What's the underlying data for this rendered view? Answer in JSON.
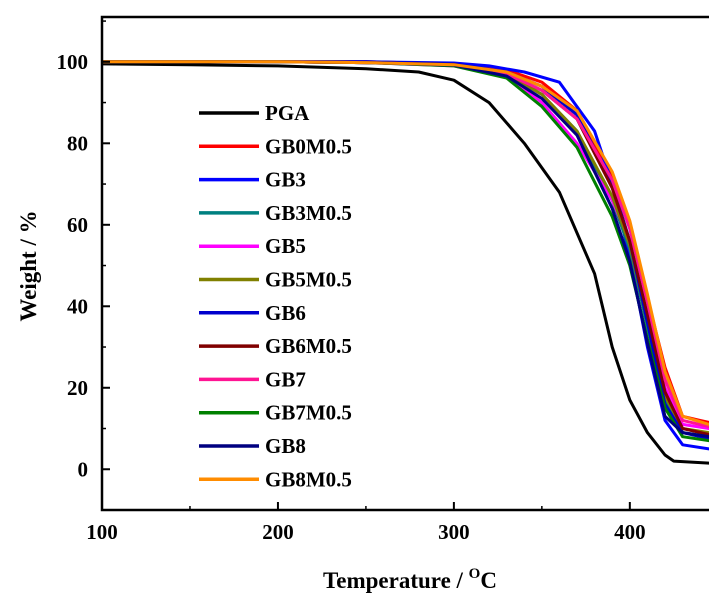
{
  "chart_data": {
    "type": "line",
    "title": "",
    "xlabel": "Temperature / ",
    "xlabel_sup": "O",
    "xlabel_unit": "C",
    "ylabel": "Weight / %",
    "xlim": [
      100,
      445
    ],
    "ylim": [
      -10,
      111
    ],
    "x_ticks": [
      100,
      200,
      300,
      400
    ],
    "y_ticks": [
      0,
      20,
      40,
      60,
      80,
      100
    ],
    "x_tick_labels": [
      "100",
      "200",
      "300",
      "400"
    ],
    "y_tick_labels": [
      "0",
      "20",
      "40",
      "60",
      "80",
      "100"
    ],
    "legend_position": "center-left",
    "grid": false,
    "series": [
      {
        "name": "PGA",
        "color": "#000000",
        "points": [
          [
            100,
            99.5
          ],
          [
            150,
            99.3
          ],
          [
            200,
            99
          ],
          [
            250,
            98.3
          ],
          [
            280,
            97.5
          ],
          [
            300,
            95.5
          ],
          [
            320,
            90
          ],
          [
            340,
            80
          ],
          [
            360,
            68
          ],
          [
            380,
            48
          ],
          [
            390,
            30
          ],
          [
            400,
            17
          ],
          [
            410,
            9
          ],
          [
            420,
            3.5
          ],
          [
            425,
            2
          ],
          [
            445,
            1.5
          ]
        ]
      },
      {
        "name": "GB0M0.5",
        "color": "#FF0000",
        "points": [
          [
            100,
            100
          ],
          [
            150,
            100
          ],
          [
            200,
            100
          ],
          [
            250,
            100
          ],
          [
            300,
            99.5
          ],
          [
            330,
            98
          ],
          [
            350,
            95
          ],
          [
            370,
            88
          ],
          [
            390,
            72
          ],
          [
            400,
            60
          ],
          [
            410,
            42
          ],
          [
            420,
            25
          ],
          [
            430,
            13
          ],
          [
            440,
            12
          ],
          [
            445,
            11.5
          ]
        ]
      },
      {
        "name": "GB3",
        "color": "#0000FF",
        "points": [
          [
            100,
            100
          ],
          [
            150,
            100
          ],
          [
            200,
            100
          ],
          [
            250,
            100
          ],
          [
            300,
            99.7
          ],
          [
            320,
            99
          ],
          [
            340,
            97.5
          ],
          [
            360,
            95
          ],
          [
            380,
            83
          ],
          [
            390,
            70
          ],
          [
            400,
            52
          ],
          [
            410,
            30
          ],
          [
            420,
            12
          ],
          [
            430,
            6
          ],
          [
            445,
            5
          ]
        ]
      },
      {
        "name": "GB3M0.5",
        "color": "#008080",
        "points": [
          [
            100,
            100
          ],
          [
            150,
            100
          ],
          [
            200,
            100
          ],
          [
            250,
            99.8
          ],
          [
            300,
            99.2
          ],
          [
            330,
            97
          ],
          [
            350,
            92
          ],
          [
            370,
            83
          ],
          [
            390,
            66
          ],
          [
            400,
            54
          ],
          [
            410,
            35
          ],
          [
            420,
            17
          ],
          [
            430,
            9
          ],
          [
            445,
            8
          ]
        ]
      },
      {
        "name": "GB5",
        "color": "#FF00FF",
        "points": [
          [
            100,
            100
          ],
          [
            150,
            100
          ],
          [
            200,
            100
          ],
          [
            250,
            99.8
          ],
          [
            300,
            99
          ],
          [
            330,
            96.5
          ],
          [
            350,
            90
          ],
          [
            370,
            80
          ],
          [
            390,
            66
          ],
          [
            400,
            56
          ],
          [
            410,
            38
          ],
          [
            420,
            20
          ],
          [
            430,
            11
          ],
          [
            445,
            10
          ]
        ]
      },
      {
        "name": "GB5M0.5",
        "color": "#808000",
        "points": [
          [
            100,
            100
          ],
          [
            150,
            100
          ],
          [
            200,
            100
          ],
          [
            250,
            99.8
          ],
          [
            300,
            99.2
          ],
          [
            330,
            97
          ],
          [
            350,
            92
          ],
          [
            370,
            83
          ],
          [
            390,
            67
          ],
          [
            400,
            55
          ],
          [
            410,
            36
          ],
          [
            420,
            18
          ],
          [
            430,
            10
          ],
          [
            445,
            9
          ]
        ]
      },
      {
        "name": "GB6",
        "color": "#0000CD",
        "points": [
          [
            100,
            100
          ],
          [
            150,
            100
          ],
          [
            200,
            100
          ],
          [
            250,
            100
          ],
          [
            300,
            99.5
          ],
          [
            330,
            97.5
          ],
          [
            350,
            94
          ],
          [
            370,
            87
          ],
          [
            390,
            70
          ],
          [
            400,
            56
          ],
          [
            410,
            36
          ],
          [
            420,
            16
          ],
          [
            430,
            9
          ],
          [
            445,
            7.5
          ]
        ]
      },
      {
        "name": "GB6M0.5",
        "color": "#800000",
        "points": [
          [
            100,
            100
          ],
          [
            150,
            100
          ],
          [
            200,
            100
          ],
          [
            250,
            99.8
          ],
          [
            300,
            99.3
          ],
          [
            330,
            97
          ],
          [
            350,
            93
          ],
          [
            370,
            86
          ],
          [
            390,
            69
          ],
          [
            400,
            56
          ],
          [
            410,
            38
          ],
          [
            420,
            19
          ],
          [
            430,
            10
          ],
          [
            445,
            8.5
          ]
        ]
      },
      {
        "name": "GB7",
        "color": "#FF1493",
        "points": [
          [
            100,
            100
          ],
          [
            150,
            100
          ],
          [
            200,
            100
          ],
          [
            250,
            99.8
          ],
          [
            300,
            99.2
          ],
          [
            330,
            97
          ],
          [
            350,
            93
          ],
          [
            370,
            86
          ],
          [
            390,
            71
          ],
          [
            400,
            59
          ],
          [
            410,
            41
          ],
          [
            420,
            22
          ],
          [
            430,
            12
          ],
          [
            445,
            10.5
          ]
        ]
      },
      {
        "name": "GB7M0.5",
        "color": "#008000",
        "points": [
          [
            100,
            100
          ],
          [
            150,
            100
          ],
          [
            200,
            100
          ],
          [
            250,
            99.8
          ],
          [
            300,
            99
          ],
          [
            330,
            96
          ],
          [
            350,
            89
          ],
          [
            370,
            79
          ],
          [
            390,
            62
          ],
          [
            400,
            50
          ],
          [
            410,
            32
          ],
          [
            420,
            15
          ],
          [
            430,
            8
          ],
          [
            445,
            7
          ]
        ]
      },
      {
        "name": "GB8",
        "color": "#000080",
        "points": [
          [
            100,
            100
          ],
          [
            150,
            100
          ],
          [
            200,
            100
          ],
          [
            250,
            99.8
          ],
          [
            300,
            99.2
          ],
          [
            330,
            96.5
          ],
          [
            350,
            91
          ],
          [
            370,
            82
          ],
          [
            390,
            64
          ],
          [
            400,
            51
          ],
          [
            410,
            31
          ],
          [
            420,
            13
          ],
          [
            430,
            9
          ],
          [
            445,
            8
          ]
        ]
      },
      {
        "name": "GB8M0.5",
        "color": "#FF8C00",
        "points": [
          [
            100,
            100
          ],
          [
            150,
            100
          ],
          [
            200,
            100
          ],
          [
            250,
            99.8
          ],
          [
            300,
            99.3
          ],
          [
            330,
            97.5
          ],
          [
            350,
            94
          ],
          [
            370,
            88
          ],
          [
            390,
            73
          ],
          [
            400,
            61
          ],
          [
            410,
            43
          ],
          [
            420,
            24
          ],
          [
            430,
            13
          ],
          [
            445,
            11
          ]
        ]
      }
    ]
  }
}
